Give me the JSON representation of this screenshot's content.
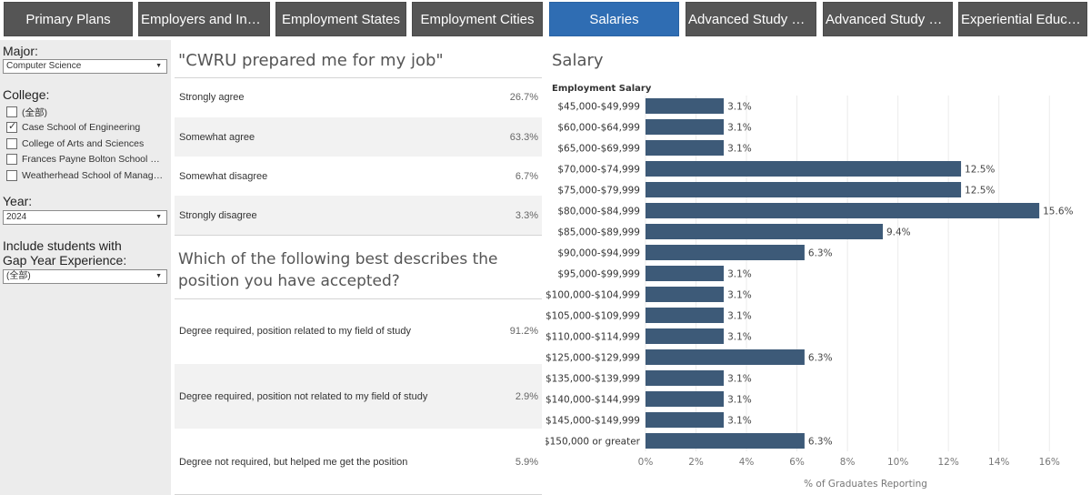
{
  "tabs": [
    {
      "label": "Primary Plans",
      "active": false
    },
    {
      "label": "Employers and Industries",
      "active": false
    },
    {
      "label": "Employment States",
      "active": false
    },
    {
      "label": "Employment Cities",
      "active": false
    },
    {
      "label": "Salaries",
      "active": true
    },
    {
      "label": "Advanced Study Schools",
      "active": false
    },
    {
      "label": "Advanced Study Programs",
      "active": false
    },
    {
      "label": "Experiential Education",
      "active": false
    }
  ],
  "filters": {
    "major_label": "Major:",
    "major_value": "Computer Science",
    "college_label": "College:",
    "college_options": [
      {
        "label": "(全部)",
        "checked": false
      },
      {
        "label": "Case School of Engineering",
        "checked": true
      },
      {
        "label": "College of Arts and Sciences",
        "checked": false
      },
      {
        "label": "Frances Payne Bolton School of Nursing",
        "checked": false
      },
      {
        "label": "Weatherhead School of Management",
        "checked": false
      }
    ],
    "year_label": "Year:",
    "year_value": "2024",
    "gap_label_line1": "Include students with",
    "gap_label_line2": "Gap Year Experience:",
    "gap_value": "(全部)"
  },
  "survey": {
    "q1_title": "\"CWRU prepared me for my job\"",
    "q1_rows": [
      {
        "label": "Strongly agree",
        "value": "26.7%"
      },
      {
        "label": "Somewhat agree",
        "value": "63.3%"
      },
      {
        "label": "Somewhat disagree",
        "value": "6.7%"
      },
      {
        "label": "Strongly disagree",
        "value": "3.3%"
      }
    ],
    "q2_title_line1": "Which of the following best describes the",
    "q2_title_line2": "position you have accepted?",
    "q2_rows": [
      {
        "label": "Degree required, position related to my field of study",
        "value": "91.2%"
      },
      {
        "label": "Degree required, position not related to my field of study",
        "value": "2.9%"
      },
      {
        "label": "Degree not required, but helped me get the position",
        "value": "5.9%"
      }
    ]
  },
  "colors": {
    "bar": "#3d5a78",
    "tab": "#555555",
    "tab_active": "#2f6db3"
  },
  "chart_data": {
    "type": "bar",
    "orientation": "horizontal",
    "title": "Salary",
    "category_header": "Employment Salary",
    "xlabel": "% of Graduates Reporting",
    "xlim": [
      0,
      17
    ],
    "xticks": [
      0,
      2,
      4,
      6,
      8,
      10,
      12,
      14,
      16
    ],
    "xtick_labels": [
      "0%",
      "2%",
      "4%",
      "6%",
      "8%",
      "10%",
      "12%",
      "14%",
      "16%"
    ],
    "categories": [
      "$45,000-$49,999",
      "$60,000-$64,999",
      "$65,000-$69,999",
      "$70,000-$74,999",
      "$75,000-$79,999",
      "$80,000-$84,999",
      "$85,000-$89,999",
      "$90,000-$94,999",
      "$95,000-$99,999",
      "$100,000-$104,999",
      "$105,000-$109,999",
      "$110,000-$114,999",
      "$125,000-$129,999",
      "$135,000-$139,999",
      "$140,000-$144,999",
      "$145,000-$149,999",
      "$150,000 or greater"
    ],
    "values": [
      3.1,
      3.1,
      3.1,
      12.5,
      12.5,
      15.6,
      9.4,
      6.3,
      3.1,
      3.1,
      3.1,
      3.1,
      6.3,
      3.1,
      3.1,
      3.1,
      6.3
    ],
    "value_labels": [
      "3.1%",
      "3.1%",
      "3.1%",
      "12.5%",
      "12.5%",
      "15.6%",
      "9.4%",
      "6.3%",
      "3.1%",
      "3.1%",
      "3.1%",
      "3.1%",
      "6.3%",
      "3.1%",
      "3.1%",
      "3.1%",
      "6.3%"
    ],
    "grid": true
  }
}
